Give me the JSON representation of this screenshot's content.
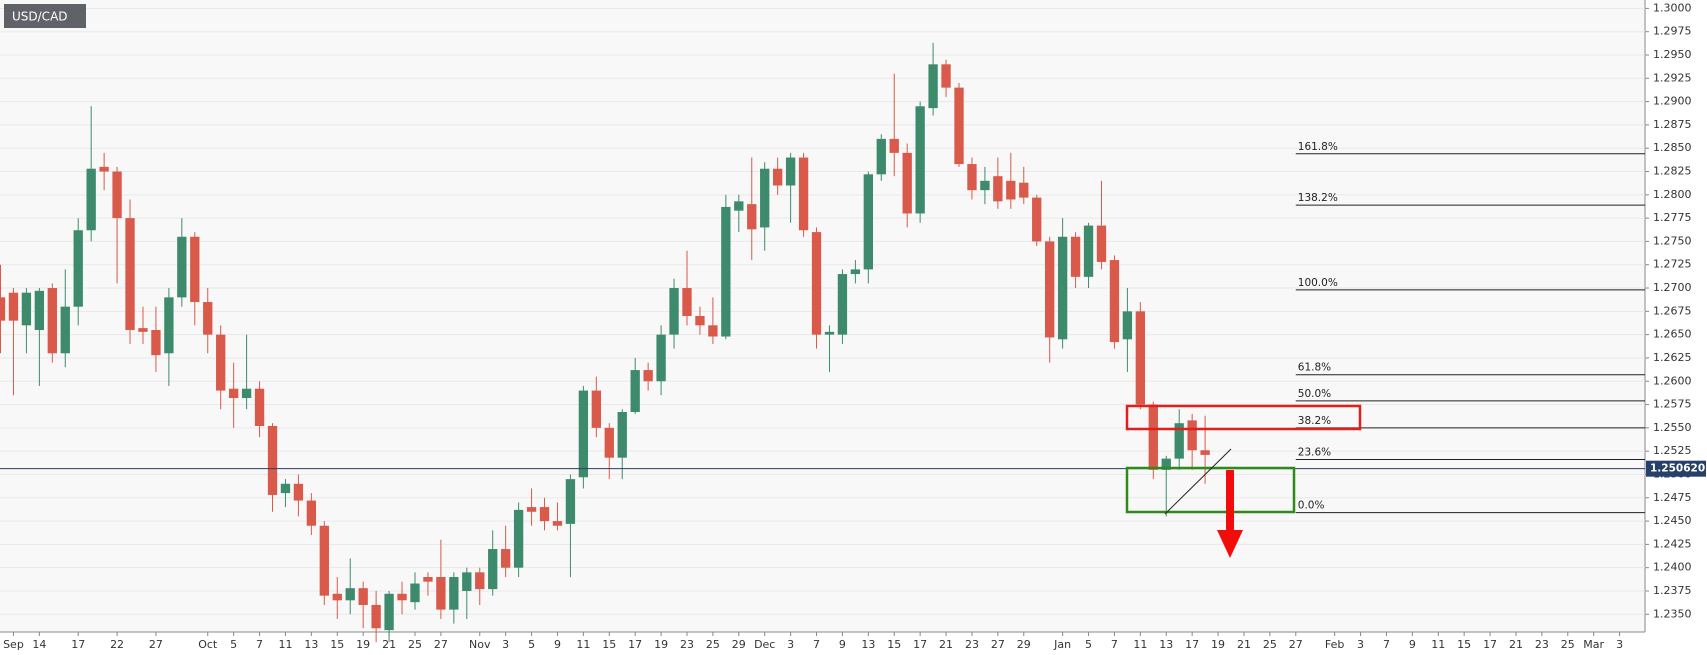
{
  "chart_data": {
    "type": "candlestick",
    "title": "USD/CAD",
    "categories": [
      null,
      "Sep",
      null,
      "14",
      null,
      null,
      "17",
      null,
      null,
      "22",
      null,
      null,
      "27",
      null,
      null,
      null,
      "Oct",
      null,
      "5",
      null,
      "7",
      null,
      "11",
      null,
      "13",
      null,
      "15",
      null,
      "19",
      null,
      "21",
      null,
      "25",
      null,
      "27",
      null,
      null,
      "Nov",
      null,
      "3",
      null,
      "5",
      null,
      "9",
      null,
      "11",
      null,
      "15",
      null,
      "17",
      null,
      "19",
      null,
      "23",
      null,
      "25",
      null,
      "29",
      null,
      "Dec",
      null,
      "3",
      null,
      "7",
      null,
      "9",
      null,
      "13",
      null,
      "15",
      null,
      "17",
      null,
      "21",
      null,
      "23",
      null,
      "27",
      null,
      "29",
      null,
      null,
      "Jan",
      null,
      "5",
      null,
      "7",
      null,
      "11",
      null,
      "13",
      null,
      "17",
      null,
      "19",
      null,
      "21",
      null,
      "25",
      null,
      "27",
      null,
      null,
      "Feb",
      null,
      "3",
      null,
      "7",
      null,
      "9",
      null,
      "11",
      null,
      "15",
      null,
      "17",
      null,
      "21",
      null,
      "23",
      null,
      "25",
      null,
      "Mar",
      null,
      "3"
    ],
    "open": [
      1.269,
      1.2695,
      1.266,
      1.2655,
      1.27,
      1.263,
      1.268,
      1.2762,
      1.283,
      1.2825,
      1.2775,
      1.2657,
      1.2655,
      1.263,
      1.269,
      1.2755,
      1.2685,
      1.265,
      1.2592,
      1.2582,
      1.2592,
      1.2552,
      1.248,
      1.249,
      1.2472,
      1.2445,
      1.2372,
      1.2365,
      1.2378,
      1.236,
      1.2333,
      1.2372,
      1.2363,
      1.239,
      1.239,
      1.2355,
      1.2375,
      1.2395,
      1.2377,
      1.242,
      1.24,
      1.2465,
      1.2465,
      1.245,
      1.2447,
      1.2497,
      1.259,
      1.255,
      1.2518,
      1.2567,
      1.2612,
      1.26,
      1.265,
      1.27,
      1.267,
      1.266,
      1.2648,
      1.2783,
      1.279,
      1.2765,
      1.2828,
      1.281,
      1.284,
      1.276,
      1.265,
      1.265,
      1.2715,
      1.272,
      1.2822,
      1.286,
      1.2845,
      1.278,
      1.2893,
      1.294,
      1.2915,
      1.2833,
      1.2805,
      1.282,
      1.2815,
      1.2813,
      1.2797,
      1.275,
      1.2645,
      1.2755,
      1.2712,
      1.2767,
      1.273,
      1.2645,
      1.2675,
      1.2575,
      1.2505,
      1.2517,
      1.2558,
      1.2526,
      null,
      null,
      null,
      null,
      null,
      null,
      null,
      null,
      null,
      null,
      null,
      null,
      null,
      null,
      null,
      null,
      null,
      null,
      null,
      null,
      null,
      null,
      null,
      null,
      null,
      null,
      null,
      null,
      null,
      null,
      null,
      null
    ],
    "high": [
      1.2725,
      1.27,
      1.27,
      1.27,
      1.2705,
      1.272,
      1.2775,
      1.2895,
      1.2845,
      1.283,
      1.2795,
      1.268,
      1.268,
      1.27,
      1.2775,
      1.276,
      1.27,
      1.266,
      1.262,
      1.265,
      1.26,
      1.2555,
      1.2495,
      1.25,
      1.248,
      1.245,
      1.239,
      1.241,
      1.2385,
      1.2375,
      1.2375,
      1.2385,
      1.2395,
      1.2395,
      1.243,
      1.2395,
      1.24,
      1.24,
      1.244,
      1.2445,
      1.247,
      1.2485,
      1.2475,
      1.247,
      1.25,
      1.2595,
      1.2605,
      1.2555,
      1.257,
      1.2625,
      1.262,
      1.266,
      1.271,
      1.274,
      1.268,
      1.269,
      1.28,
      1.28,
      1.284,
      1.2835,
      1.284,
      1.2845,
      1.2845,
      1.2765,
      1.266,
      1.272,
      1.273,
      1.2825,
      1.2865,
      1.293,
      1.2855,
      1.29,
      1.2963,
      1.2945,
      1.292,
      1.284,
      1.283,
      1.284,
      1.2845,
      1.283,
      1.28,
      1.2755,
      1.2775,
      1.276,
      1.277,
      1.2815,
      1.2735,
      1.27,
      1.2685,
      1.2578,
      1.252,
      1.257,
      1.2565,
      1.2563,
      null,
      null,
      null,
      null,
      null,
      null,
      null,
      null,
      null,
      null,
      null,
      null,
      null,
      null,
      null,
      null,
      null,
      null,
      null,
      null,
      null,
      null,
      null,
      null,
      null,
      null,
      null,
      null,
      null,
      null,
      null,
      null
    ],
    "low": [
      1.263,
      1.2585,
      1.263,
      1.2595,
      1.262,
      1.2615,
      1.266,
      1.275,
      1.2805,
      1.2705,
      1.264,
      1.264,
      1.261,
      1.2595,
      1.268,
      1.266,
      1.263,
      1.257,
      1.255,
      1.257,
      1.254,
      1.246,
      1.2465,
      1.2455,
      1.2435,
      1.236,
      1.2345,
      1.235,
      1.2335,
      1.232,
      1.232,
      1.235,
      1.2355,
      1.237,
      1.2345,
      1.234,
      1.2345,
      1.236,
      1.237,
      1.239,
      1.239,
      1.2445,
      1.244,
      1.244,
      1.239,
      1.2485,
      1.254,
      1.2495,
      1.2495,
      1.2565,
      1.259,
      1.2585,
      1.2635,
      1.266,
      1.265,
      1.264,
      1.2645,
      1.276,
      1.273,
      1.274,
      1.28,
      1.277,
      1.2755,
      1.2635,
      1.261,
      1.264,
      1.2705,
      1.2705,
      1.2815,
      1.282,
      1.2765,
      1.277,
      1.2885,
      1.2905,
      1.283,
      1.2795,
      1.279,
      1.2785,
      1.2785,
      1.279,
      1.2745,
      1.262,
      1.2635,
      1.27,
      1.27,
      1.272,
      1.2635,
      1.261,
      1.257,
      1.2495,
      1.2455,
      1.2505,
      1.2505,
      1.249,
      null,
      null,
      null,
      null,
      null,
      null,
      null,
      null,
      null,
      null,
      null,
      null,
      null,
      null,
      null,
      null,
      null,
      null,
      null,
      null,
      null,
      null,
      null,
      null,
      null,
      null,
      null,
      null,
      null,
      null,
      null,
      null
    ],
    "close": [
      1.2665,
      1.2665,
      1.2695,
      1.2697,
      1.263,
      1.268,
      1.2762,
      1.2828,
      1.2825,
      1.2775,
      1.2655,
      1.2653,
      1.2628,
      1.269,
      1.2755,
      1.2685,
      1.265,
      1.259,
      1.2582,
      1.2592,
      1.2552,
      1.2478,
      1.249,
      1.2472,
      1.2445,
      1.237,
      1.2365,
      1.2378,
      1.236,
      1.2335,
      1.2372,
      1.2365,
      1.2383,
      1.2385,
      1.2355,
      1.239,
      1.2395,
      1.2377,
      1.242,
      1.24,
      1.2462,
      1.246,
      1.245,
      1.2445,
      1.2495,
      1.259,
      1.255,
      1.2518,
      1.2567,
      1.2612,
      1.26,
      1.265,
      1.27,
      1.267,
      1.266,
      1.2648,
      1.2787,
      1.2793,
      1.2763,
      1.2828,
      1.281,
      1.284,
      1.2762,
      1.265,
      1.2653,
      1.2715,
      1.272,
      1.2822,
      1.286,
      1.2845,
      1.278,
      1.2895,
      1.294,
      1.2915,
      1.2833,
      1.2805,
      1.2815,
      1.2793,
      1.2795,
      1.2797,
      1.275,
      1.2647,
      1.2755,
      1.2712,
      1.2767,
      1.2728,
      1.2642,
      1.2675,
      1.2575,
      1.2505,
      1.2517,
      1.2555,
      1.2526,
      1.2521,
      null,
      null,
      null,
      null,
      null,
      null,
      null,
      null,
      null,
      null,
      null,
      null,
      null,
      null,
      null,
      null,
      null,
      null,
      null,
      null,
      null,
      null,
      null,
      null,
      null,
      null,
      null,
      null,
      null,
      null,
      null,
      null
    ],
    "up_color": "#3d8b6c",
    "down_color": "#d9594a",
    "ylim": [
      1.2331,
      1.3009
    ],
    "yticks": [
      {
        "value": 1.235,
        "label": "1.2350"
      },
      {
        "value": 1.2375,
        "label": "1.2375"
      },
      {
        "value": 1.24,
        "label": "1.2400"
      },
      {
        "value": 1.2425,
        "label": "1.2425"
      },
      {
        "value": 1.245,
        "label": "1.2450"
      },
      {
        "value": 1.2475,
        "label": "1.2475"
      },
      {
        "value": 1.25,
        "label": "1.2500"
      },
      {
        "value": 1.2525,
        "label": "1.2525"
      },
      {
        "value": 1.255,
        "label": "1.2550"
      },
      {
        "value": 1.2575,
        "label": "1.2575"
      },
      {
        "value": 1.26,
        "label": "1.2600"
      },
      {
        "value": 1.2625,
        "label": "1.2625"
      },
      {
        "value": 1.265,
        "label": "1.2650"
      },
      {
        "value": 1.2675,
        "label": "1.2675"
      },
      {
        "value": 1.27,
        "label": "1.2700"
      },
      {
        "value": 1.2725,
        "label": "1.2725"
      },
      {
        "value": 1.275,
        "label": "1.2750"
      },
      {
        "value": 1.2775,
        "label": "1.2775"
      },
      {
        "value": 1.28,
        "label": "1.2800"
      },
      {
        "value": 1.2825,
        "label": "1.2825"
      },
      {
        "value": 1.285,
        "label": "1.2850"
      },
      {
        "value": 1.2875,
        "label": "1.2875"
      },
      {
        "value": 1.29,
        "label": "1.2900"
      },
      {
        "value": 1.2925,
        "label": "1.2925"
      },
      {
        "value": 1.295,
        "label": "1.2950"
      },
      {
        "value": 1.2975,
        "label": "1.2975"
      },
      {
        "value": 1.3,
        "label": "1.3000"
      }
    ],
    "grid": true,
    "fib_levels": [
      {
        "value": 1.2844,
        "label": "161.8%"
      },
      {
        "value": 1.2789,
        "label": "138.2%"
      },
      {
        "value": 1.2698,
        "label": "100.0%"
      },
      {
        "value": 1.2607,
        "label": "61.8%"
      },
      {
        "value": 1.2579,
        "label": "50.0%"
      },
      {
        "value": 1.255,
        "label": "38.2%"
      },
      {
        "value": 1.2516,
        "label": "23.6%"
      },
      {
        "value": 1.2459,
        "label": "0.0%"
      }
    ],
    "last_price": {
      "value": 1.25062,
      "label": "1.250620"
    }
  }
}
